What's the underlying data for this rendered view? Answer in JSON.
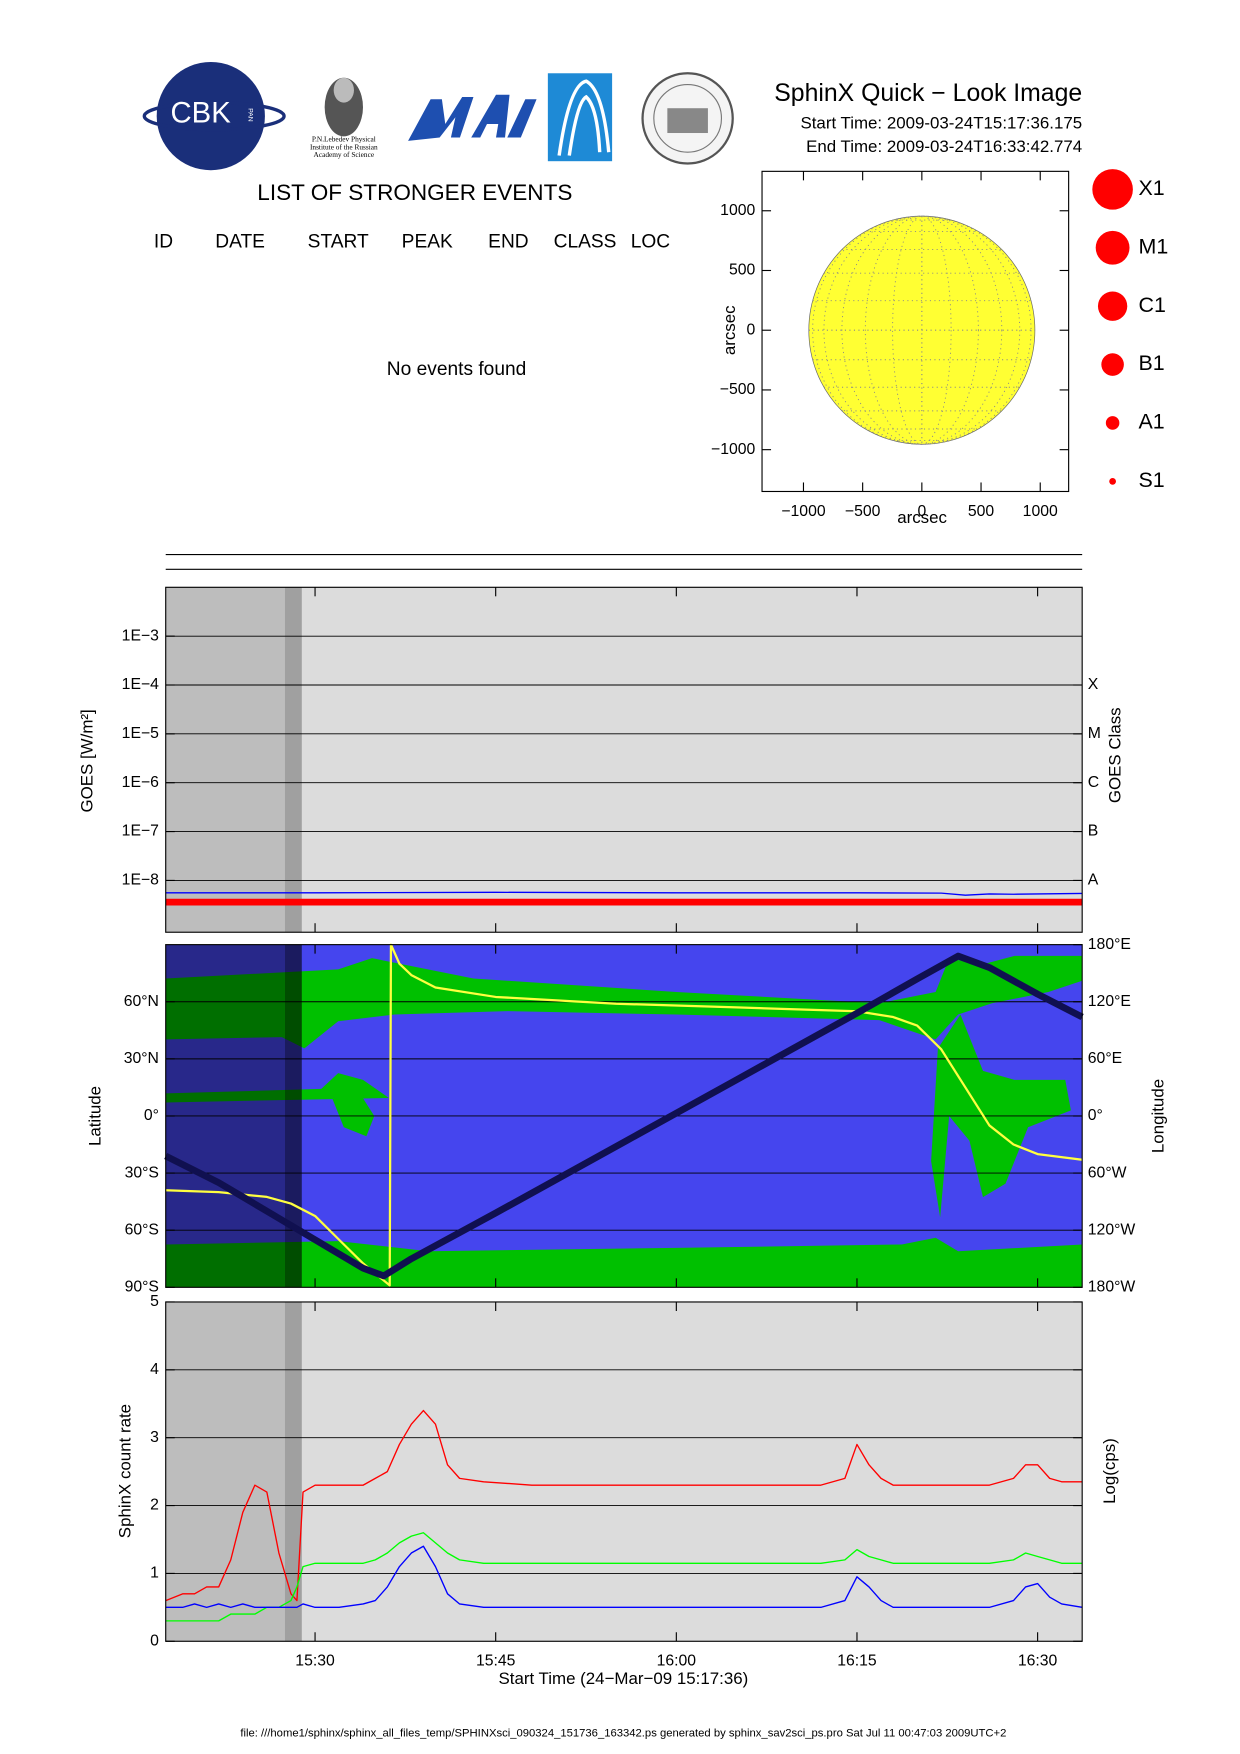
{
  "header": {
    "title": "SphinX Quick − Look Image",
    "start_time": "Start Time: 2009-03-24T15:17:36.175",
    "end_time": "End Time: 2009-03-24T16:33:42.774",
    "logo_cbk": "CBK",
    "logo_pan": "PAN",
    "logo_caption": [
      "P.N.Lebedev Physical",
      "Institute of the Russian",
      "Academy of Science"
    ]
  },
  "events": {
    "title": "LIST OF STRONGER EVENTS",
    "columns": [
      "ID",
      "DATE",
      "START",
      "PEAK",
      "END",
      "CLASS",
      "LOC"
    ],
    "message": "No events found"
  },
  "size_legend": {
    "labels": [
      "X1",
      "M1",
      "C1",
      "B1",
      "A1",
      "S1"
    ],
    "color": "#ff0000"
  },
  "chart_data": [
    {
      "type": "disk",
      "xlabel": "arcsec",
      "ylabel": "arcsec",
      "color": "#ffff33",
      "solar_radius": 955,
      "xlim": [
        -1350,
        1240
      ],
      "ylim": [
        -1350,
        1330
      ],
      "xticks": [
        {
          "value": -1000,
          "label": "−1000"
        },
        {
          "value": -500,
          "label": "−500"
        },
        0,
        500,
        1000
      ],
      "yticks": [
        {
          "value": -1000,
          "label": "−1000"
        },
        {
          "value": -500,
          "label": "−500"
        },
        0,
        500,
        1000
      ]
    },
    {
      "type": "line",
      "ylabel": "GOES [W/m²]",
      "y2label": "GOES Class",
      "y_scale": "log",
      "grid": true,
      "background": "#dcdcdc",
      "shading": [
        {
          "from": 17.6,
          "to": 27.5,
          "color": "#bdbdbd"
        },
        {
          "from": 27.5,
          "to": 28.9,
          "color": "#a0a0a0"
        }
      ],
      "xlim": [
        17.6,
        93.7
      ],
      "ylim": [
        8.7e-10,
        0.01
      ],
      "yticks": [
        {
          "value": 0.001,
          "label": "1E−3"
        },
        {
          "value": 0.0001,
          "label": "1E−4"
        },
        {
          "value": 1e-05,
          "label": "1E−5"
        },
        {
          "value": 1e-06,
          "label": "1E−6"
        },
        {
          "value": 1e-07,
          "label": "1E−7"
        },
        {
          "value": 1e-08,
          "label": "1E−8"
        }
      ],
      "y2lim": [
        8.7e-10,
        0.01
      ],
      "y2ticks": [
        {
          "value": 1e-08,
          "label": "A"
        },
        {
          "value": 1e-07,
          "label": "B"
        },
        {
          "value": 1e-06,
          "label": "C"
        },
        {
          "value": 1e-05,
          "label": "M"
        },
        {
          "value": 0.0001,
          "label": "X"
        }
      ],
      "series": [
        {
          "color": "#0000ff",
          "x": [
            17.6,
            30,
            45,
            60,
            75,
            82,
            84,
            86,
            88,
            90,
            93.7
          ],
          "values": [
            5.6e-09,
            5.6e-09,
            5.7e-09,
            5.6e-09,
            5.6e-09,
            5.5e-09,
            5e-09,
            5.3e-09,
            5.2e-09,
            5.3e-09,
            5.4e-09
          ]
        },
        {
          "color": "#ff0000",
          "x": [
            17.6,
            93.7
          ],
          "values": [
            3.6e-09,
            3.6e-09
          ]
        }
      ]
    },
    {
      "type": "map",
      "ylabel": "Latitude",
      "y2label": "Longitude",
      "grid": true,
      "background": "#4545ee",
      "shading": [
        {
          "from": 17.6,
          "to": 27.5,
          "color": "#000000"
        },
        {
          "from": 27.5,
          "to": 28.9,
          "color": "#000000"
        }
      ],
      "xlim": [
        17.6,
        93.7
      ],
      "ylim": [
        -90,
        90
      ],
      "yticks": [
        {
          "value": -90,
          "label": "90°S"
        },
        {
          "value": -60,
          "label": "60°S"
        },
        {
          "value": -30,
          "label": "30°S"
        },
        {
          "value": 0,
          "label": "0°"
        },
        {
          "value": 30,
          "label": "30°N"
        },
        {
          "value": 60,
          "label": "60°N"
        }
      ],
      "y2lim": [
        -180,
        180
      ],
      "y2ticks": [
        {
          "value": -180,
          "label": "180°W"
        },
        {
          "value": -120,
          "label": "120°W"
        },
        {
          "value": -60,
          "label": "60°W"
        },
        {
          "value": 0,
          "label": "0°"
        },
        {
          "value": 60,
          "label": "60°E"
        },
        {
          "value": 120,
          "label": "120°E"
        },
        {
          "value": 180,
          "label": "180°E"
        }
      ],
      "series": [
        {
          "color": "#ffff40",
          "axis": "y2",
          "x": [
            17.6,
            22,
            26,
            28,
            30,
            32,
            34,
            36.2,
            36.3,
            37,
            38,
            40,
            45,
            55,
            65,
            75,
            78,
            80,
            82,
            84,
            86,
            88,
            90,
            93.7
          ],
          "values": [
            -78,
            -80,
            -85,
            -92,
            -105,
            -130,
            -155,
            -178,
            180,
            160,
            148,
            135,
            125,
            118,
            114,
            110,
            104,
            95,
            70,
            30,
            -10,
            -30,
            -40,
            -46
          ]
        },
        {
          "color": "#101050",
          "x": [
            17.6,
            22,
            26,
            30,
            34,
            35.7,
            38,
            45,
            55,
            65,
            75,
            80,
            83.4,
            86,
            90,
            93.7
          ],
          "values": [
            -21,
            -35,
            -50,
            -65,
            -80,
            -84,
            -75,
            -51,
            -16,
            19,
            54,
            72,
            84,
            78,
            64,
            52
          ]
        }
      ]
    },
    {
      "type": "line",
      "xlabel": "Start Time (24−Mar−09 15:17:36)",
      "ylabel": "SphinX count rate",
      "y2label": "Log(cps)",
      "grid": true,
      "background": "#dcdcdc",
      "shading": [
        {
          "from": 17.6,
          "to": 27.5,
          "color": "#bdbdbd"
        },
        {
          "from": 27.5,
          "to": 28.9,
          "color": "#a0a0a0"
        }
      ],
      "xlim": [
        17.6,
        93.7
      ],
      "ylim": [
        0,
        5
      ],
      "xticks": [
        {
          "value": 30,
          "label": "15:30"
        },
        {
          "value": 45,
          "label": "15:45"
        },
        {
          "value": 60,
          "label": "16:00"
        },
        {
          "value": 75,
          "label": "16:15"
        },
        {
          "value": 90,
          "label": "16:30"
        }
      ],
      "yticks": [
        0,
        1,
        2,
        3,
        4,
        5
      ],
      "x": [
        17.6,
        19,
        20,
        21,
        22,
        23,
        24,
        25,
        26,
        27,
        28,
        28.5,
        29,
        30,
        32,
        34,
        35,
        36,
        37,
        38,
        39,
        40,
        41,
        42,
        44,
        48,
        52,
        56,
        60,
        64,
        68,
        72,
        74,
        75,
        76,
        77,
        78,
        80,
        84,
        86,
        88,
        89,
        90,
        91,
        92,
        93.7
      ],
      "series": [
        {
          "color": "#ff0000",
          "values": [
            0.6,
            0.7,
            0.7,
            0.8,
            0.8,
            1.2,
            1.9,
            2.3,
            2.2,
            1.3,
            0.7,
            0.6,
            2.2,
            2.3,
            2.3,
            2.3,
            2.4,
            2.5,
            2.9,
            3.2,
            3.4,
            3.2,
            2.6,
            2.4,
            2.35,
            2.3,
            2.3,
            2.3,
            2.3,
            2.3,
            2.3,
            2.3,
            2.4,
            2.9,
            2.6,
            2.4,
            2.3,
            2.3,
            2.3,
            2.3,
            2.4,
            2.6,
            2.6,
            2.4,
            2.35,
            2.35
          ]
        },
        {
          "color": "#00ff00",
          "values": [
            0.3,
            0.3,
            0.3,
            0.3,
            0.3,
            0.4,
            0.4,
            0.4,
            0.5,
            0.5,
            0.6,
            0.8,
            1.1,
            1.15,
            1.15,
            1.15,
            1.2,
            1.3,
            1.45,
            1.55,
            1.6,
            1.45,
            1.3,
            1.2,
            1.15,
            1.15,
            1.15,
            1.15,
            1.15,
            1.15,
            1.15,
            1.15,
            1.2,
            1.35,
            1.25,
            1.2,
            1.15,
            1.15,
            1.15,
            1.15,
            1.2,
            1.3,
            1.25,
            1.2,
            1.15,
            1.15
          ]
        },
        {
          "color": "#0000ff",
          "values": [
            0.5,
            0.5,
            0.55,
            0.5,
            0.55,
            0.5,
            0.55,
            0.5,
            0.5,
            0.5,
            0.5,
            0.5,
            0.55,
            0.5,
            0.5,
            0.55,
            0.6,
            0.8,
            1.1,
            1.3,
            1.4,
            1.1,
            0.7,
            0.55,
            0.5,
            0.5,
            0.5,
            0.5,
            0.5,
            0.5,
            0.5,
            0.5,
            0.6,
            0.95,
            0.8,
            0.6,
            0.5,
            0.5,
            0.5,
            0.5,
            0.6,
            0.8,
            0.85,
            0.65,
            0.55,
            0.5
          ]
        }
      ]
    }
  ],
  "footer": "file: ///home1/sphinx/sphinx_all_files_temp/SPHINXsci_090324_151736_163342.ps generated by sphinx_sav2sci_ps.pro Sat Jul 11 00:47:03 2009UTC+2"
}
